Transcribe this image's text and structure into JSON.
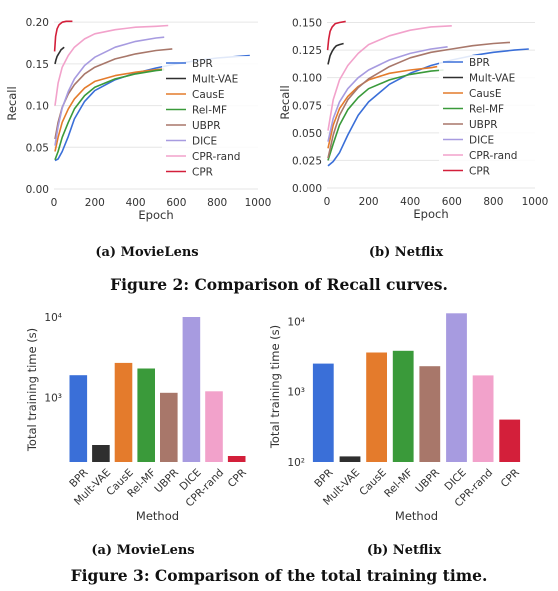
{
  "series_colors": {
    "BPR": "#3a6fd8",
    "Mult-VAE": "#2f2f2f",
    "CausE": "#e47b2c",
    "Rel-MF": "#3a9a3a",
    "UBPR": "#a8776a",
    "DICE": "#a79be0",
    "CPR-rand": "#f2a2cb",
    "CPR": "#d31f3a"
  },
  "fig2_caption": "Figure 2: Comparison of Recall curves.",
  "fig3_caption": "Figure 3: Comparison of the total training time.",
  "chart_data": [
    {
      "id": "recall-movielens",
      "type": "line",
      "subcaption": "(a) MovieLens",
      "xlabel": "Epoch",
      "ylabel": "Recall",
      "xlim": [
        0,
        1000
      ],
      "ylim": [
        0,
        0.205
      ],
      "xticks": [
        0,
        200,
        400,
        600,
        800,
        1000
      ],
      "xtick_labels": [
        "0",
        "200",
        "400",
        "600",
        "800",
        "1000"
      ],
      "yticks": [
        0,
        0.05,
        0.1,
        0.15,
        0.2
      ],
      "ytick_labels": [
        "0.00",
        "0.05",
        "0.10",
        "0.15",
        "0.20"
      ],
      "legend": "center-right",
      "grid": "y",
      "series": [
        {
          "name": "BPR",
          "points": [
            [
              5,
              0.034
            ],
            [
              20,
              0.036
            ],
            [
              40,
              0.045
            ],
            [
              70,
              0.063
            ],
            [
              100,
              0.084
            ],
            [
              150,
              0.105
            ],
            [
              200,
              0.118
            ],
            [
              300,
              0.131
            ],
            [
              400,
              0.139
            ],
            [
              500,
              0.145
            ],
            [
              600,
              0.15
            ],
            [
              700,
              0.154
            ],
            [
              800,
              0.157
            ],
            [
              900,
              0.159
            ],
            [
              960,
              0.16
            ]
          ]
        },
        {
          "name": "Mult-VAE",
          "points": [
            [
              5,
              0.15
            ],
            [
              10,
              0.155
            ],
            [
              15,
              0.159
            ],
            [
              20,
              0.161
            ],
            [
              25,
              0.163
            ],
            [
              30,
              0.165
            ],
            [
              35,
              0.167
            ],
            [
              40,
              0.168
            ],
            [
              45,
              0.169
            ],
            [
              50,
              0.17
            ]
          ]
        },
        {
          "name": "CausE",
          "points": [
            [
              5,
              0.045
            ],
            [
              20,
              0.062
            ],
            [
              40,
              0.08
            ],
            [
              70,
              0.096
            ],
            [
              100,
              0.108
            ],
            [
              150,
              0.121
            ],
            [
              200,
              0.129
            ],
            [
              300,
              0.136
            ],
            [
              400,
              0.14
            ],
            [
              500,
              0.143
            ],
            [
              540,
              0.144
            ]
          ]
        },
        {
          "name": "Rel-MF",
          "points": [
            [
              5,
              0.035
            ],
            [
              20,
              0.045
            ],
            [
              40,
              0.062
            ],
            [
              70,
              0.08
            ],
            [
              100,
              0.096
            ],
            [
              150,
              0.112
            ],
            [
              200,
              0.122
            ],
            [
              300,
              0.132
            ],
            [
              400,
              0.138
            ],
            [
              500,
              0.142
            ],
            [
              540,
              0.143
            ]
          ]
        },
        {
          "name": "UBPR",
          "points": [
            [
              5,
              0.06
            ],
            [
              20,
              0.08
            ],
            [
              40,
              0.098
            ],
            [
              70,
              0.114
            ],
            [
              100,
              0.125
            ],
            [
              150,
              0.138
            ],
            [
              200,
              0.146
            ],
            [
              300,
              0.156
            ],
            [
              400,
              0.162
            ],
            [
              500,
              0.166
            ],
            [
              580,
              0.168
            ]
          ]
        },
        {
          "name": "DICE",
          "points": [
            [
              5,
              0.052
            ],
            [
              20,
              0.075
            ],
            [
              40,
              0.097
            ],
            [
              70,
              0.117
            ],
            [
              100,
              0.132
            ],
            [
              150,
              0.148
            ],
            [
              200,
              0.158
            ],
            [
              300,
              0.17
            ],
            [
              400,
              0.177
            ],
            [
              500,
              0.181
            ],
            [
              540,
              0.182
            ]
          ]
        },
        {
          "name": "CPR-rand",
          "points": [
            [
              5,
              0.1
            ],
            [
              20,
              0.127
            ],
            [
              40,
              0.146
            ],
            [
              70,
              0.16
            ],
            [
              100,
              0.17
            ],
            [
              150,
              0.18
            ],
            [
              200,
              0.186
            ],
            [
              300,
              0.191
            ],
            [
              400,
              0.194
            ],
            [
              500,
              0.195
            ],
            [
              560,
              0.196
            ]
          ]
        },
        {
          "name": "CPR",
          "points": [
            [
              3,
              0.165
            ],
            [
              8,
              0.183
            ],
            [
              15,
              0.192
            ],
            [
              25,
              0.197
            ],
            [
              40,
              0.2
            ],
            [
              60,
              0.201
            ],
            [
              90,
              0.201
            ]
          ]
        }
      ]
    },
    {
      "id": "recall-netflix",
      "type": "line",
      "subcaption": "(b) Netflix",
      "xlabel": "Epoch",
      "ylabel": "Recall",
      "xlim": [
        0,
        1000
      ],
      "ylim": [
        0,
        0.155
      ],
      "xticks": [
        0,
        200,
        400,
        600,
        800,
        1000
      ],
      "xtick_labels": [
        "0",
        "200",
        "400",
        "600",
        "800",
        "1000"
      ],
      "yticks": [
        0,
        0.025,
        0.05,
        0.075,
        0.1,
        0.125,
        0.15
      ],
      "ytick_labels": [
        "0.000",
        "0.025",
        "0.050",
        "0.075",
        "0.100",
        "0.125",
        "0.150"
      ],
      "legend": "center-right",
      "grid": "y",
      "series": [
        {
          "name": "BPR",
          "points": [
            [
              5,
              0.02
            ],
            [
              30,
              0.024
            ],
            [
              60,
              0.032
            ],
            [
              100,
              0.048
            ],
            [
              150,
              0.066
            ],
            [
              200,
              0.078
            ],
            [
              300,
              0.094
            ],
            [
              400,
              0.104
            ],
            [
              500,
              0.111
            ],
            [
              600,
              0.116
            ],
            [
              700,
              0.12
            ],
            [
              800,
              0.123
            ],
            [
              900,
              0.125
            ],
            [
              970,
              0.126
            ]
          ]
        },
        {
          "name": "Mult-VAE",
          "points": [
            [
              5,
              0.112
            ],
            [
              15,
              0.12
            ],
            [
              25,
              0.124
            ],
            [
              35,
              0.127
            ],
            [
              45,
              0.129
            ],
            [
              60,
              0.13
            ],
            [
              80,
              0.131
            ]
          ]
        },
        {
          "name": "CausE",
          "points": [
            [
              5,
              0.036
            ],
            [
              30,
              0.057
            ],
            [
              60,
              0.072
            ],
            [
              100,
              0.083
            ],
            [
              150,
              0.092
            ],
            [
              200,
              0.098
            ],
            [
              300,
              0.104
            ],
            [
              400,
              0.107
            ],
            [
              500,
              0.109
            ],
            [
              530,
              0.11
            ]
          ]
        },
        {
          "name": "Rel-MF",
          "points": [
            [
              5,
              0.025
            ],
            [
              30,
              0.04
            ],
            [
              60,
              0.057
            ],
            [
              100,
              0.071
            ],
            [
              150,
              0.082
            ],
            [
              200,
              0.09
            ],
            [
              300,
              0.098
            ],
            [
              400,
              0.103
            ],
            [
              500,
              0.106
            ],
            [
              560,
              0.107
            ]
          ]
        },
        {
          "name": "UBPR",
          "points": [
            [
              5,
              0.027
            ],
            [
              30,
              0.048
            ],
            [
              60,
              0.066
            ],
            [
              100,
              0.08
            ],
            [
              150,
              0.091
            ],
            [
              200,
              0.099
            ],
            [
              300,
              0.11
            ],
            [
              400,
              0.118
            ],
            [
              500,
              0.123
            ],
            [
              600,
              0.126
            ],
            [
              700,
              0.129
            ],
            [
              800,
              0.131
            ],
            [
              880,
              0.132
            ]
          ]
        },
        {
          "name": "DICE",
          "points": [
            [
              5,
              0.042
            ],
            [
              30,
              0.063
            ],
            [
              60,
              0.078
            ],
            [
              100,
              0.09
            ],
            [
              150,
              0.1
            ],
            [
              200,
              0.107
            ],
            [
              300,
              0.116
            ],
            [
              400,
              0.122
            ],
            [
              500,
              0.126
            ],
            [
              580,
              0.128
            ]
          ]
        },
        {
          "name": "CPR-rand",
          "points": [
            [
              5,
              0.052
            ],
            [
              30,
              0.08
            ],
            [
              60,
              0.098
            ],
            [
              100,
              0.111
            ],
            [
              150,
              0.122
            ],
            [
              200,
              0.13
            ],
            [
              300,
              0.138
            ],
            [
              400,
              0.143
            ],
            [
              500,
              0.146
            ],
            [
              600,
              0.147
            ]
          ]
        },
        {
          "name": "CPR",
          "points": [
            [
              3,
              0.125
            ],
            [
              8,
              0.135
            ],
            [
              15,
              0.142
            ],
            [
              25,
              0.146
            ],
            [
              40,
              0.149
            ],
            [
              60,
              0.15
            ],
            [
              90,
              0.151
            ]
          ]
        }
      ]
    },
    {
      "id": "time-movielens",
      "type": "bar",
      "subcaption": "(a) MovieLens",
      "xlabel": "Method",
      "ylabel": "Total training time (s)",
      "yscale": "log",
      "ylim": [
        160,
        10000
      ],
      "yticks": [
        1000,
        10000
      ],
      "ytick_labels": [
        "10³",
        "10⁴"
      ],
      "categories": [
        "BPR",
        "Mult-VAE",
        "CausE",
        "Rel-MF",
        "UBPR",
        "DICE",
        "CPR-rand",
        "CPR"
      ],
      "values": [
        1900,
        260,
        2700,
        2300,
        1150,
        10000,
        1200,
        190
      ]
    },
    {
      "id": "time-netflix",
      "type": "bar",
      "subcaption": "(b) Netflix",
      "xlabel": "Method",
      "ylabel": "Total training time (s)",
      "yscale": "log",
      "ylim": [
        100,
        14000
      ],
      "yticks": [
        100,
        1000,
        10000
      ],
      "ytick_labels": [
        "10²",
        "10³",
        "10⁴"
      ],
      "categories": [
        "BPR",
        "Mult-VAE",
        "CausE",
        "Rel-MF",
        "UBPR",
        "DICE",
        "CPR-rand",
        "CPR"
      ],
      "values": [
        2500,
        120,
        3600,
        3800,
        2300,
        13000,
        1700,
        400
      ]
    }
  ]
}
